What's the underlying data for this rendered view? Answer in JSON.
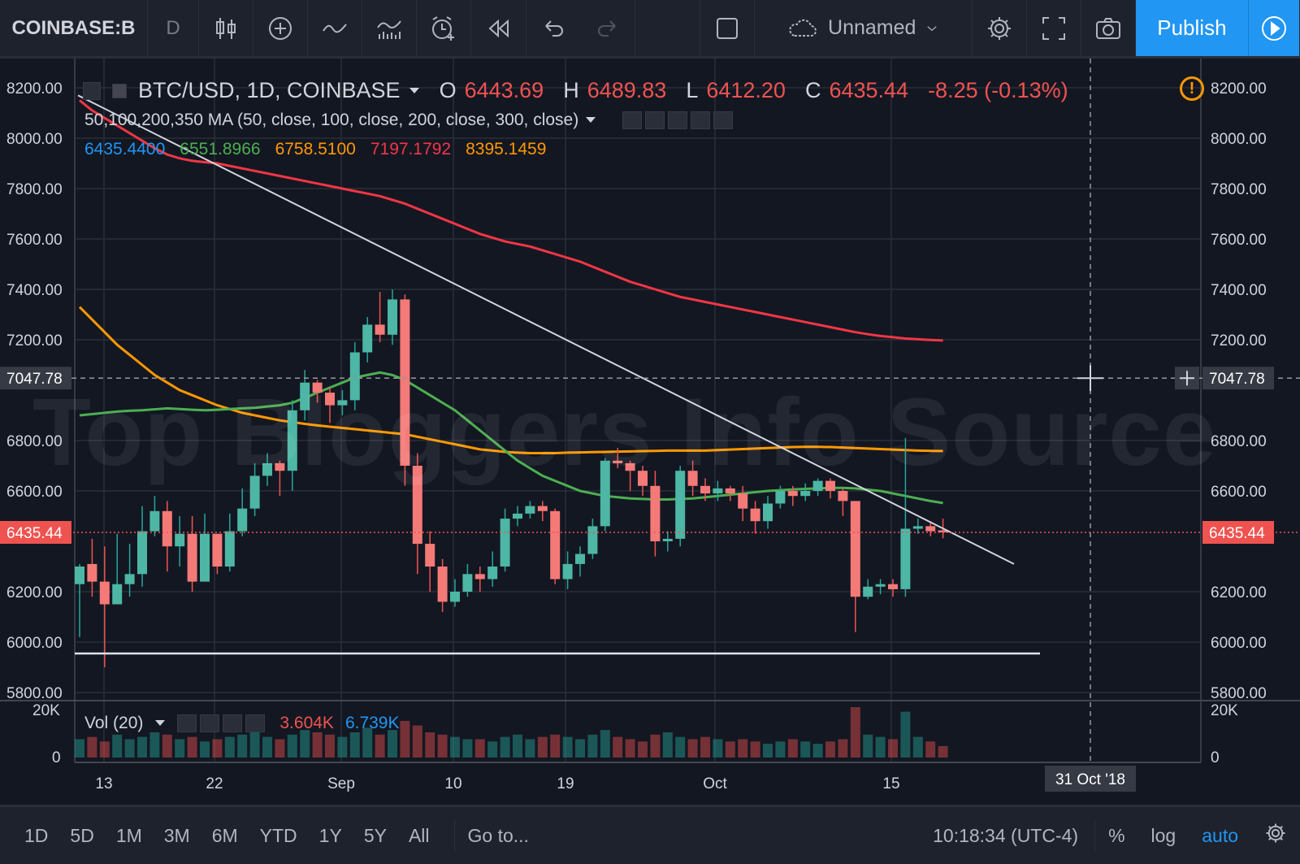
{
  "toolbar": {
    "symbol": "COINBASE:B",
    "interval": "D",
    "layout_name": "Unnamed",
    "publish_label": "Publish"
  },
  "legend": {
    "pair": "BTC/USD, 1D, COINBASE",
    "open_label": "O",
    "open": "6443.69",
    "high_label": "H",
    "high": "6489.83",
    "low_label": "L",
    "low": "6412.20",
    "close_label": "C",
    "close": "6435.44",
    "change": "-8.25 (-0.13%)",
    "ma_title": "50,100,200,350 MA (50, close, 100, close, 200, close, 300, close)",
    "ma_values": [
      {
        "value": "6435.4400",
        "color": "#2196f3"
      },
      {
        "value": "6551.8966",
        "color": "#4caf50"
      },
      {
        "value": "6758.5100",
        "color": "#ff9800"
      },
      {
        "value": "7197.1792",
        "color": "#f23645"
      },
      {
        "value": "8395.1459",
        "color": "#ff9800"
      }
    ],
    "vol_title": "Vol (20)",
    "vol_value1": "3.604K",
    "vol_value2": "6.739K"
  },
  "watermark": "Top Bloggers Info Source",
  "axis": {
    "price_ticks": [
      "8200.00",
      "8000.00",
      "7800.00",
      "7600.00",
      "7400.00",
      "7200.00",
      "6800.00",
      "6600.00",
      "6200.00",
      "6000.00",
      "5800.00"
    ],
    "crosshair_price": "7047.78",
    "last_price": "6435.44",
    "vol_ticks": [
      "20K",
      "0"
    ],
    "time_ticks": [
      "13",
      "22",
      "Sep",
      "10",
      "19",
      "Oct",
      "15"
    ],
    "crosshair_date": "31 Oct '18"
  },
  "chart_data": {
    "type": "candlestick",
    "ylim": [
      5800,
      8200
    ],
    "candles": [
      [
        6230,
        6300,
        6020,
        6310
      ],
      [
        6310,
        6240,
        6180,
        6410
      ],
      [
        6240,
        6150,
        5900,
        6380
      ],
      [
        6150,
        6230,
        6160,
        6430
      ],
      [
        6230,
        6270,
        6180,
        6390
      ],
      [
        6270,
        6440,
        6220,
        6540
      ],
      [
        6440,
        6520,
        6420,
        6580
      ],
      [
        6520,
        6380,
        6280,
        6560
      ],
      [
        6380,
        6430,
        6300,
        6500
      ],
      [
        6430,
        6240,
        6200,
        6500
      ],
      [
        6240,
        6430,
        6240,
        6510
      ],
      [
        6430,
        6300,
        6270,
        6420
      ],
      [
        6300,
        6440,
        6280,
        6510
      ],
      [
        6440,
        6530,
        6420,
        6610
      ],
      [
        6530,
        6660,
        6500,
        6710
      ],
      [
        6660,
        6710,
        6620,
        6750
      ],
      [
        6710,
        6680,
        6580,
        6720
      ],
      [
        6680,
        6920,
        6600,
        6960
      ],
      [
        6920,
        7030,
        6880,
        7080
      ],
      [
        7030,
        6990,
        6950,
        7040
      ],
      [
        6990,
        6940,
        6870,
        7010
      ],
      [
        6940,
        6960,
        6900,
        7000
      ],
      [
        6960,
        7150,
        6920,
        7190
      ],
      [
        7150,
        7260,
        7110,
        7290
      ],
      [
        7260,
        7220,
        7190,
        7390
      ],
      [
        7220,
        7360,
        7180,
        7400
      ],
      [
        7360,
        6700,
        6620,
        7380
      ],
      [
        6700,
        6390,
        6270,
        6750
      ],
      [
        6390,
        6300,
        6200,
        6440
      ],
      [
        6300,
        6160,
        6120,
        6330
      ],
      [
        6160,
        6200,
        6140,
        6250
      ],
      [
        6200,
        6270,
        6180,
        6310
      ],
      [
        6270,
        6250,
        6200,
        6300
      ],
      [
        6250,
        6300,
        6220,
        6360
      ],
      [
        6300,
        6490,
        6280,
        6530
      ],
      [
        6490,
        6510,
        6460,
        6540
      ],
      [
        6510,
        6540,
        6490,
        6560
      ],
      [
        6540,
        6520,
        6480,
        6560
      ],
      [
        6520,
        6250,
        6230,
        6530
      ],
      [
        6250,
        6310,
        6210,
        6360
      ],
      [
        6310,
        6350,
        6260,
        6380
      ],
      [
        6350,
        6460,
        6330,
        6490
      ],
      [
        6460,
        6720,
        6440,
        6730
      ],
      [
        6720,
        6710,
        6690,
        6770
      ],
      [
        6710,
        6680,
        6600,
        6720
      ],
      [
        6680,
        6620,
        6580,
        6700
      ],
      [
        6620,
        6400,
        6340,
        6680
      ],
      [
        6400,
        6410,
        6360,
        6440
      ],
      [
        6410,
        6680,
        6380,
        6700
      ],
      [
        6680,
        6620,
        6580,
        6720
      ],
      [
        6620,
        6590,
        6560,
        6650
      ],
      [
        6590,
        6610,
        6560,
        6640
      ],
      [
        6610,
        6590,
        6560,
        6620
      ],
      [
        6590,
        6530,
        6480,
        6620
      ],
      [
        6530,
        6480,
        6430,
        6560
      ],
      [
        6480,
        6550,
        6450,
        6580
      ],
      [
        6550,
        6600,
        6530,
        6620
      ],
      [
        6600,
        6580,
        6540,
        6620
      ],
      [
        6580,
        6600,
        6560,
        6630
      ],
      [
        6600,
        6640,
        6580,
        6650
      ],
      [
        6640,
        6600,
        6570,
        6650
      ],
      [
        6600,
        6560,
        6500,
        6610
      ],
      [
        6560,
        6180,
        6040,
        6560
      ],
      [
        6180,
        6220,
        6170,
        6250
      ],
      [
        6220,
        6230,
        6190,
        6250
      ],
      [
        6230,
        6210,
        6180,
        6250
      ],
      [
        6210,
        6450,
        6180,
        6810
      ],
      [
        6450,
        6460,
        6430,
        6490
      ],
      [
        6460,
        6440,
        6420,
        6480
      ],
      [
        6443.69,
        6435.44,
        6412.2,
        6489.83
      ]
    ],
    "ma_green": [
      6900,
      6905,
      6910,
      6915,
      6918,
      6920,
      6924,
      6928,
      6925,
      6922,
      6920,
      6922,
      6925,
      6928,
      6930,
      6935,
      6940,
      6950,
      6970,
      6990,
      7010,
      7030,
      7050,
      7060,
      7070,
      7060,
      7040,
      7010,
      6980,
      6950,
      6920,
      6880,
      6840,
      6800,
      6760,
      6720,
      6690,
      6660,
      6640,
      6620,
      6600,
      6590,
      6580,
      6575,
      6570,
      6568,
      6566,
      6566,
      6568,
      6570,
      6575,
      6580,
      6585,
      6590,
      6595,
      6600,
      6603,
      6606,
      6608,
      6610,
      6612,
      6612,
      6610,
      6605,
      6600,
      6590,
      6580,
      6570,
      6560,
      6551.9
    ],
    "ma_orange": [
      7330,
      7280,
      7230,
      7180,
      7140,
      7100,
      7060,
      7030,
      7000,
      6980,
      6960,
      6940,
      6925,
      6910,
      6900,
      6890,
      6880,
      6873,
      6866,
      6860,
      6855,
      6850,
      6845,
      6840,
      6835,
      6830,
      6825,
      6815,
      6805,
      6795,
      6785,
      6775,
      6765,
      6760,
      6755,
      6752,
      6750,
      6750,
      6750,
      6752,
      6753,
      6754,
      6755,
      6756,
      6757,
      6758,
      6759,
      6760,
      6760,
      6760,
      6760,
      6762,
      6764,
      6766,
      6768,
      6770,
      6772,
      6774,
      6775,
      6775,
      6774,
      6772,
      6770,
      6768,
      6766,
      6764,
      6762,
      6760,
      6759,
      6758.5
    ],
    "ma_red": [
      8150,
      8110,
      8080,
      8050,
      8020,
      7990,
      7960,
      7935,
      7920,
      7910,
      7905,
      7900,
      7890,
      7880,
      7870,
      7860,
      7850,
      7840,
      7830,
      7820,
      7810,
      7800,
      7790,
      7780,
      7770,
      7755,
      7740,
      7720,
      7700,
      7680,
      7660,
      7640,
      7620,
      7605,
      7590,
      7580,
      7570,
      7555,
      7540,
      7525,
      7510,
      7490,
      7470,
      7450,
      7430,
      7415,
      7400,
      7385,
      7370,
      7360,
      7350,
      7340,
      7330,
      7320,
      7310,
      7300,
      7290,
      7280,
      7270,
      7260,
      7250,
      7240,
      7230,
      7222,
      7215,
      7210,
      7205,
      7202,
      7199,
      7197.2
    ],
    "volumes": [
      8,
      9,
      7,
      10,
      8,
      9,
      11,
      10,
      8,
      9,
      7,
      8,
      9,
      10,
      11,
      9,
      8,
      10,
      12,
      11,
      10,
      9,
      11,
      13,
      10,
      12,
      16,
      14,
      11,
      10,
      9,
      8,
      8,
      7,
      9,
      10,
      8,
      9,
      10,
      9,
      8,
      10,
      12,
      9,
      8,
      7,
      10,
      11,
      9,
      8,
      9,
      8,
      7,
      8,
      7,
      6,
      7,
      8,
      7,
      6,
      7,
      8,
      22,
      10,
      9,
      8,
      20,
      9,
      7,
      5
    ]
  }
}
